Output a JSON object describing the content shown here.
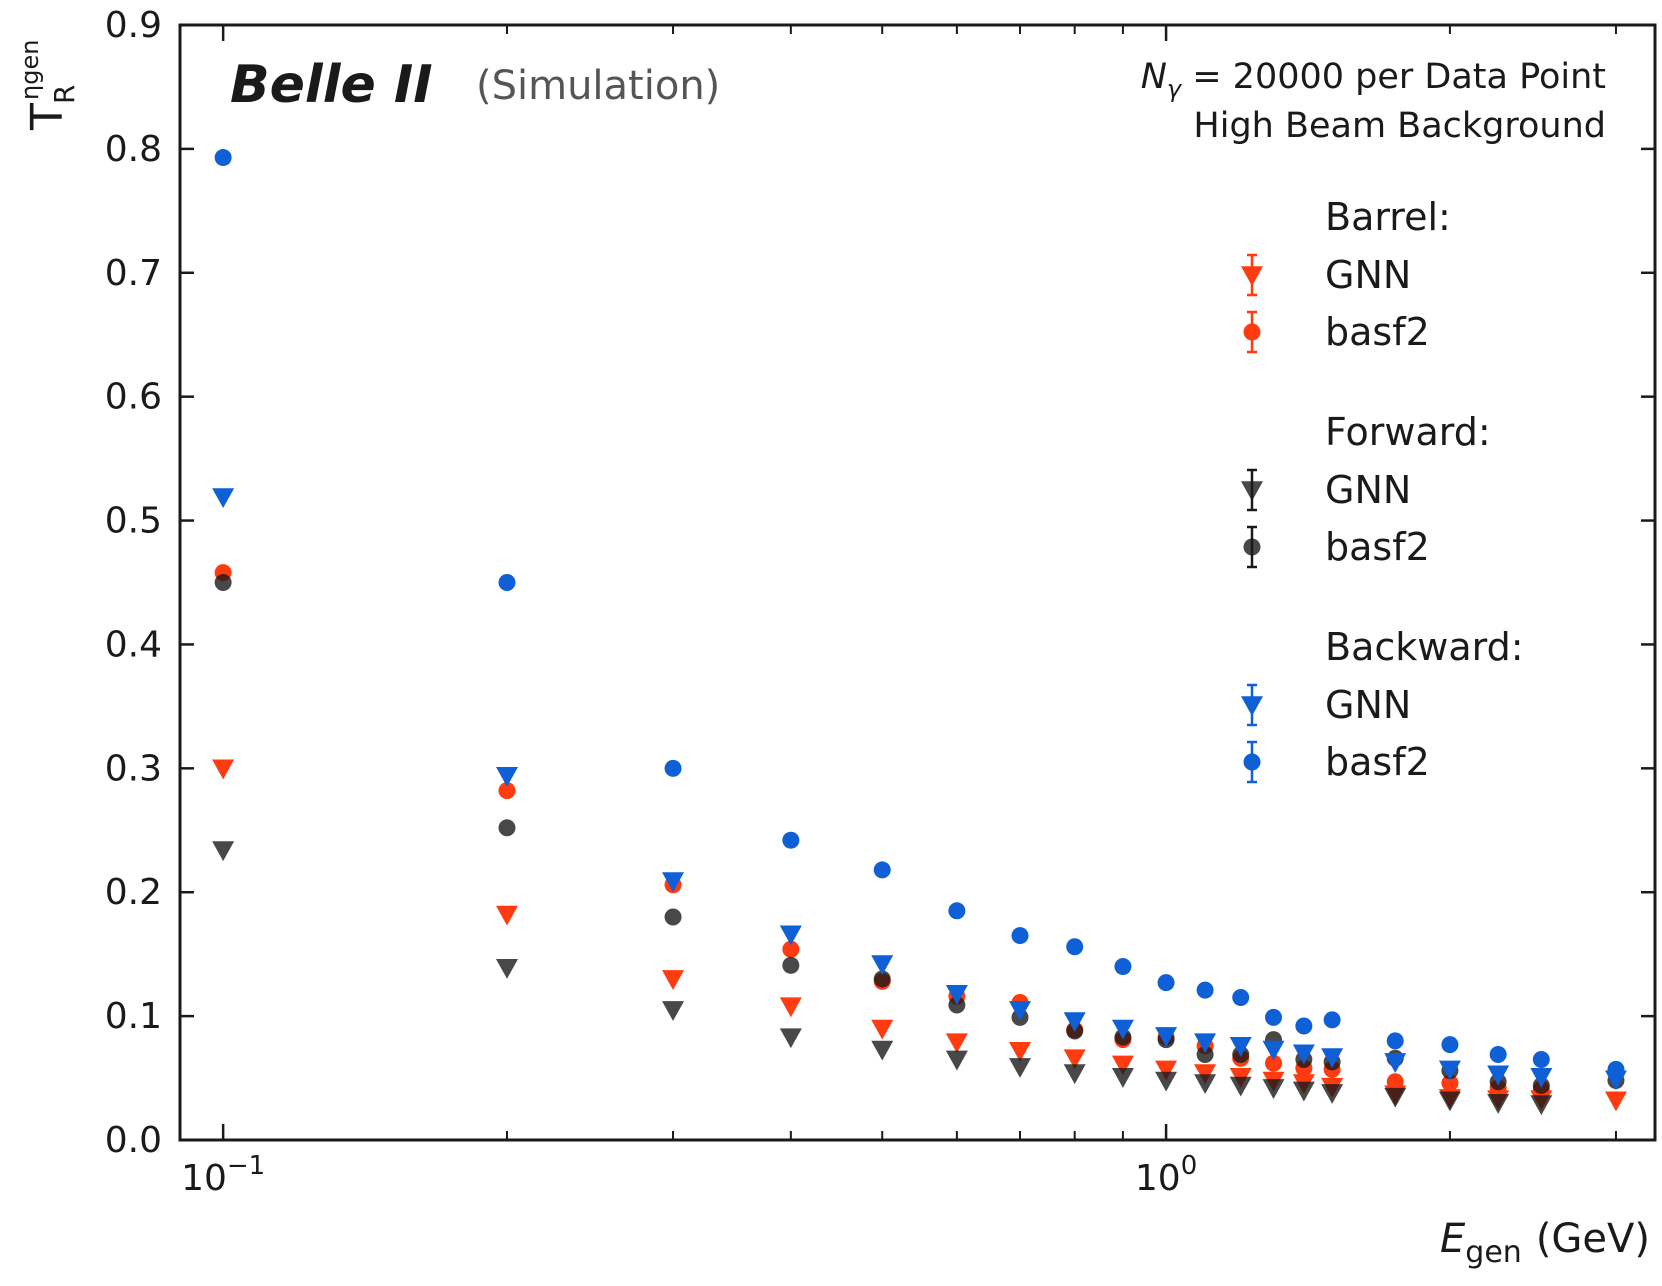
{
  "chart_data": {
    "type": "scatter",
    "title": "",
    "experiment_label": "Belle II",
    "experiment_sublabel": "(Simulation)",
    "annotations": [
      "Nγ = 20000 per Data Point",
      "High Beam Background"
    ],
    "xlabel": "E",
    "xlabel_sub": "gen",
    "xlabel_unit": "(GeV)",
    "ylabel": "T",
    "ylabel_sub": "R",
    "ylabel_sup": "ηgen",
    "xscale": "log",
    "xlim": [
      0.09,
      3.3
    ],
    "ylim": [
      0.0,
      0.9
    ],
    "x_ticks": [
      {
        "value": 0.1,
        "base": "10",
        "exp": "−1"
      },
      {
        "value": 1.0,
        "base": "10",
        "exp": "0"
      }
    ],
    "y_ticks": [
      "0.0",
      "0.1",
      "0.2",
      "0.3",
      "0.4",
      "0.5",
      "0.6",
      "0.7",
      "0.8",
      "0.9"
    ],
    "legend_position": "right",
    "x": [
      0.1,
      0.2,
      0.3,
      0.4,
      0.5,
      0.6,
      0.7,
      0.8,
      0.9,
      1.0,
      1.1,
      1.2,
      1.3,
      1.4,
      1.5,
      1.75,
      2.0,
      2.25,
      2.5,
      3.0
    ],
    "groups": [
      {
        "name": "Barrel:",
        "series": [
          {
            "name": "GNN",
            "marker": "triangle-down",
            "color": "#ff3b0f",
            "values": [
              0.3,
              0.182,
              0.13,
              0.108,
              0.09,
              0.079,
              0.072,
              0.066,
              0.061,
              0.057,
              0.054,
              0.051,
              0.048,
              0.046,
              0.043,
              0.037,
              0.034,
              0.033,
              0.033,
              0.032
            ]
          },
          {
            "name": "basf2",
            "marker": "circle",
            "color": "#ff3b0f",
            "values": [
              0.458,
              0.282,
              0.206,
              0.154,
              0.128,
              0.116,
              0.111,
              0.089,
              0.081,
              0.083,
              0.076,
              0.066,
              0.062,
              0.058,
              0.057,
              0.047,
              0.046,
              0.042,
              0.041,
              null
            ]
          }
        ]
      },
      {
        "name": "Forward:",
        "series": [
          {
            "name": "GNN",
            "marker": "triangle-down",
            "color": "#1a1a1a",
            "values": [
              0.234,
              0.139,
              0.105,
              0.083,
              0.073,
              0.065,
              0.059,
              0.054,
              0.051,
              0.048,
              0.046,
              0.044,
              0.042,
              0.04,
              0.038,
              0.035,
              0.032,
              0.03,
              0.029,
              null
            ]
          },
          {
            "name": "basf2",
            "marker": "circle",
            "color": "#1a1a1a",
            "values": [
              0.45,
              0.252,
              0.18,
              0.141,
              0.13,
              0.109,
              0.099,
              0.088,
              0.083,
              0.081,
              0.069,
              0.069,
              0.081,
              0.065,
              0.063,
              0.066,
              0.056,
              0.047,
              0.044,
              0.048
            ]
          }
        ]
      },
      {
        "name": "Backward:",
        "series": [
          {
            "name": "GNN",
            "marker": "triangle-down",
            "color": "#0f5fd6",
            "values": [
              0.519,
              0.294,
              0.209,
              0.166,
              0.142,
              0.118,
              0.105,
              0.096,
              0.09,
              0.084,
              0.079,
              0.076,
              0.073,
              0.07,
              0.067,
              0.063,
              0.057,
              0.053,
              0.051,
              0.049
            ]
          },
          {
            "name": "basf2",
            "marker": "circle",
            "color": "#0f5fd6",
            "values": [
              0.793,
              0.45,
              0.3,
              0.242,
              0.218,
              0.185,
              0.165,
              0.156,
              0.14,
              0.127,
              0.121,
              0.115,
              0.099,
              0.092,
              0.097,
              0.08,
              0.077,
              0.069,
              0.065,
              0.057
            ]
          }
        ]
      }
    ]
  }
}
